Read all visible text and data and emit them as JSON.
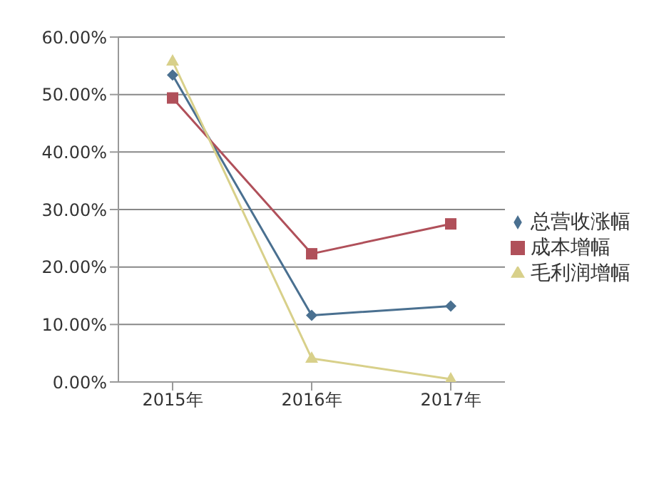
{
  "chart_data": {
    "type": "line",
    "categories": [
      "2015年",
      "2016年",
      "2017年"
    ],
    "series": [
      {
        "name": "总营收涨幅",
        "color": "#4a7090",
        "marker": "diamond",
        "values": [
          53.4,
          11.6,
          13.2
        ]
      },
      {
        "name": "成本增幅",
        "color": "#b0505a",
        "marker": "square",
        "values": [
          49.4,
          22.3,
          27.5
        ]
      },
      {
        "name": "毛利润增幅",
        "color": "#d8d08a",
        "marker": "triangle",
        "values": [
          55.8,
          4.1,
          0.5
        ]
      }
    ],
    "ylim": [
      0,
      60
    ],
    "yticks": [
      {
        "value": 0,
        "label": "0.00%"
      },
      {
        "value": 10,
        "label": "10.00%"
      },
      {
        "value": 20,
        "label": "20.00%"
      },
      {
        "value": 30,
        "label": "30.00%"
      },
      {
        "value": 40,
        "label": "40.00%"
      },
      {
        "value": 50,
        "label": "50.00%"
      },
      {
        "value": 60,
        "label": "60.00%"
      }
    ],
    "grid": "y",
    "legend": "right"
  }
}
